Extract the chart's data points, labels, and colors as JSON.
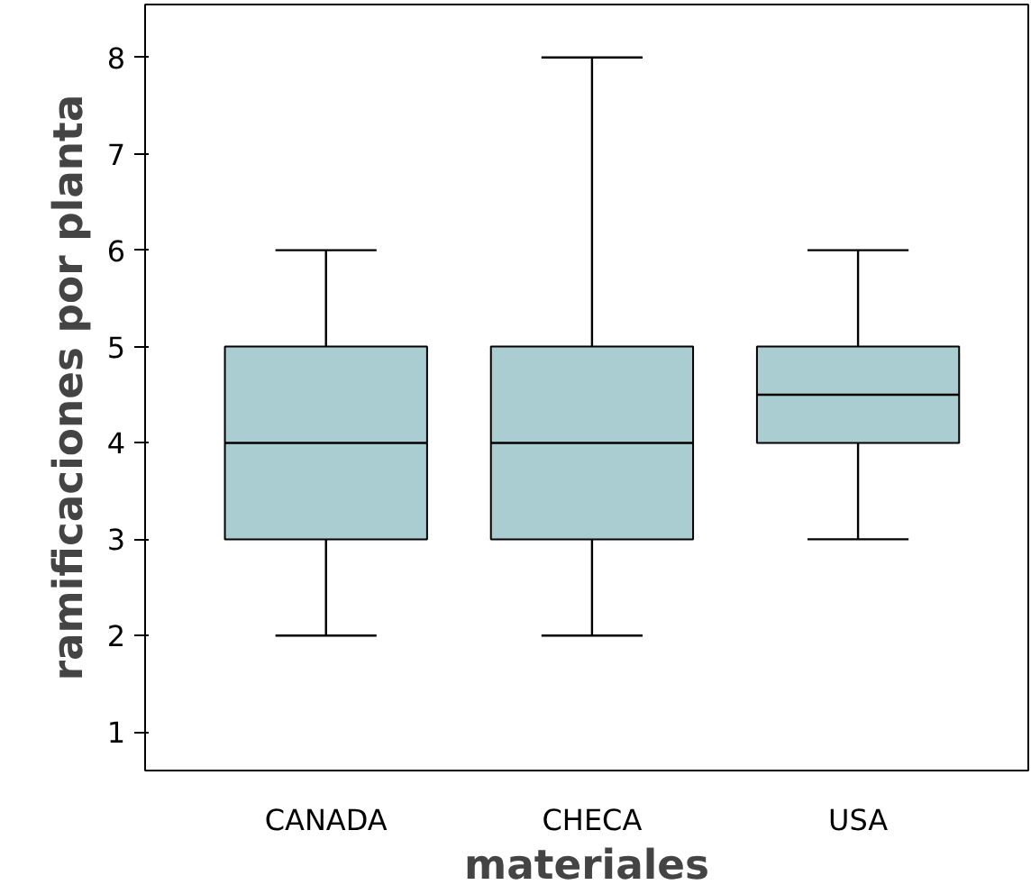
{
  "chart_data": {
    "type": "box",
    "xlabel": "materiales",
    "ylabel": "ramificaciones por planta",
    "categories": [
      "CANADA",
      "CHECA",
      "USA"
    ],
    "boxes": [
      {
        "low": 2,
        "q1": 3,
        "median": 4,
        "q3": 5,
        "high": 6
      },
      {
        "low": 2,
        "q1": 3,
        "median": 4,
        "q3": 5,
        "high": 8
      },
      {
        "low": 3,
        "q1": 4,
        "median": 4.5,
        "q3": 5,
        "high": 6
      }
    ],
    "color": "#a9cdd0",
    "ylim": [
      0.6,
      8.55
    ],
    "yticks": [
      1,
      2,
      3,
      4,
      5,
      6,
      7,
      8
    ],
    "grid": false
  }
}
